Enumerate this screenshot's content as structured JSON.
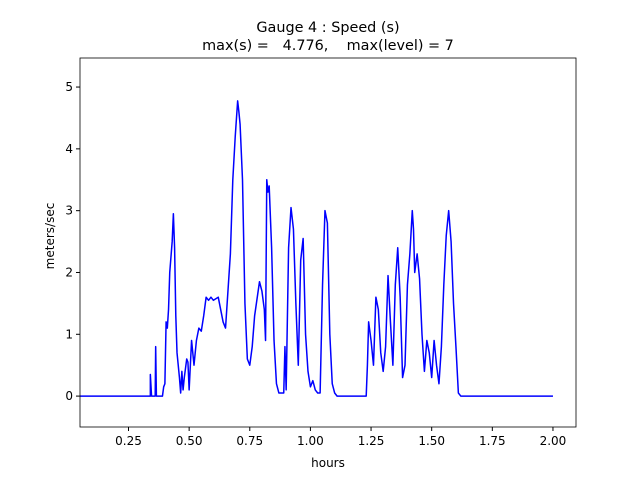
{
  "chart_data": {
    "type": "line",
    "title": "Gauge 4 : Speed (s)",
    "subtitle": "max(s) =   4.776,    max(level) = 7",
    "xlabel": "hours",
    "ylabel": "meters/sec",
    "color": "#0000ff",
    "xlim": [
      0.05,
      2.095
    ],
    "ylim": [
      -0.5,
      5.47
    ],
    "xticks": [
      0.25,
      {
        "value": 0.5,
        "label": "0.50"
      },
      0.75,
      {
        "value": 1,
        "label": "1.00"
      },
      1.25,
      {
        "value": 1.5,
        "label": "1.50"
      },
      1.75,
      {
        "value": 2,
        "label": "2.00"
      }
    ],
    "yticks": [
      0,
      1,
      2,
      3,
      4,
      5
    ],
    "x": [
      0.05,
      0.34,
      0.34,
      0.345,
      0.36,
      0.362,
      0.365,
      0.39,
      0.395,
      0.4,
      0.405,
      0.41,
      0.415,
      0.42,
      0.43,
      0.435,
      0.44,
      0.445,
      0.45,
      0.46,
      0.465,
      0.47,
      0.475,
      0.48,
      0.49,
      0.495,
      0.5,
      0.51,
      0.52,
      0.53,
      0.54,
      0.55,
      0.56,
      0.57,
      0.58,
      0.59,
      0.6,
      0.62,
      0.63,
      0.64,
      0.65,
      0.67,
      0.68,
      0.69,
      0.7,
      0.705,
      0.71,
      0.72,
      0.73,
      0.74,
      0.75,
      0.76,
      0.77,
      0.79,
      0.8,
      0.81,
      0.815,
      0.82,
      0.825,
      0.83,
      0.84,
      0.85,
      0.86,
      0.87,
      0.89,
      0.895,
      0.9,
      0.91,
      0.92,
      0.93,
      0.94,
      0.95,
      0.96,
      0.97,
      0.98,
      0.99,
      1.0,
      1.01,
      1.02,
      1.03,
      1.04,
      1.05,
      1.06,
      1.07,
      1.08,
      1.09,
      1.1,
      1.11,
      1.23,
      1.235,
      1.24,
      1.25,
      1.26,
      1.27,
      1.28,
      1.29,
      1.3,
      1.31,
      1.32,
      1.33,
      1.34,
      1.35,
      1.36,
      1.37,
      1.38,
      1.39,
      1.4,
      1.41,
      1.42,
      1.425,
      1.43,
      1.44,
      1.45,
      1.46,
      1.47,
      1.48,
      1.49,
      1.5,
      1.51,
      1.52,
      1.53,
      1.54,
      1.55,
      1.56,
      1.57,
      1.58,
      1.59,
      1.6,
      1.61,
      1.62,
      2.0
    ],
    "values": [
      0,
      0,
      0.35,
      0,
      0,
      0.8,
      0,
      0,
      0.15,
      0.2,
      1.2,
      1.1,
      1.4,
      2.0,
      2.5,
      2.95,
      2.4,
      1.3,
      0.7,
      0.3,
      0.05,
      0.4,
      0.1,
      0.3,
      0.6,
      0.55,
      0.1,
      0.9,
      0.5,
      0.9,
      1.1,
      1.05,
      1.3,
      1.6,
      1.55,
      1.6,
      1.55,
      1.6,
      1.4,
      1.2,
      1.1,
      2.3,
      3.5,
      4.2,
      4.776,
      4.6,
      4.4,
      3.5,
      1.5,
      0.6,
      0.5,
      0.8,
      1.3,
      1.85,
      1.7,
      1.4,
      0.9,
      3.5,
      3.3,
      3.4,
      2.4,
      0.9,
      0.2,
      0.05,
      0.05,
      0.8,
      0.1,
      2.4,
      3.05,
      2.7,
      1.5,
      0.5,
      2.2,
      2.55,
      1.0,
      0.4,
      0.15,
      0.25,
      0.1,
      0.05,
      0.05,
      1.8,
      3.0,
      2.8,
      1.0,
      0.2,
      0.05,
      0,
      0,
      0.5,
      1.2,
      0.9,
      0.5,
      1.6,
      1.4,
      0.7,
      0.4,
      0.8,
      1.95,
      1.2,
      0.5,
      1.8,
      2.4,
      1.6,
      0.3,
      0.5,
      1.8,
      2.3,
      3.0,
      2.7,
      2.0,
      2.3,
      1.9,
      1.0,
      0.4,
      0.9,
      0.7,
      0.3,
      0.9,
      0.5,
      0.2,
      0.8,
      1.8,
      2.6,
      3.0,
      2.5,
      1.5,
      0.8,
      0.05,
      0,
      0
    ]
  }
}
